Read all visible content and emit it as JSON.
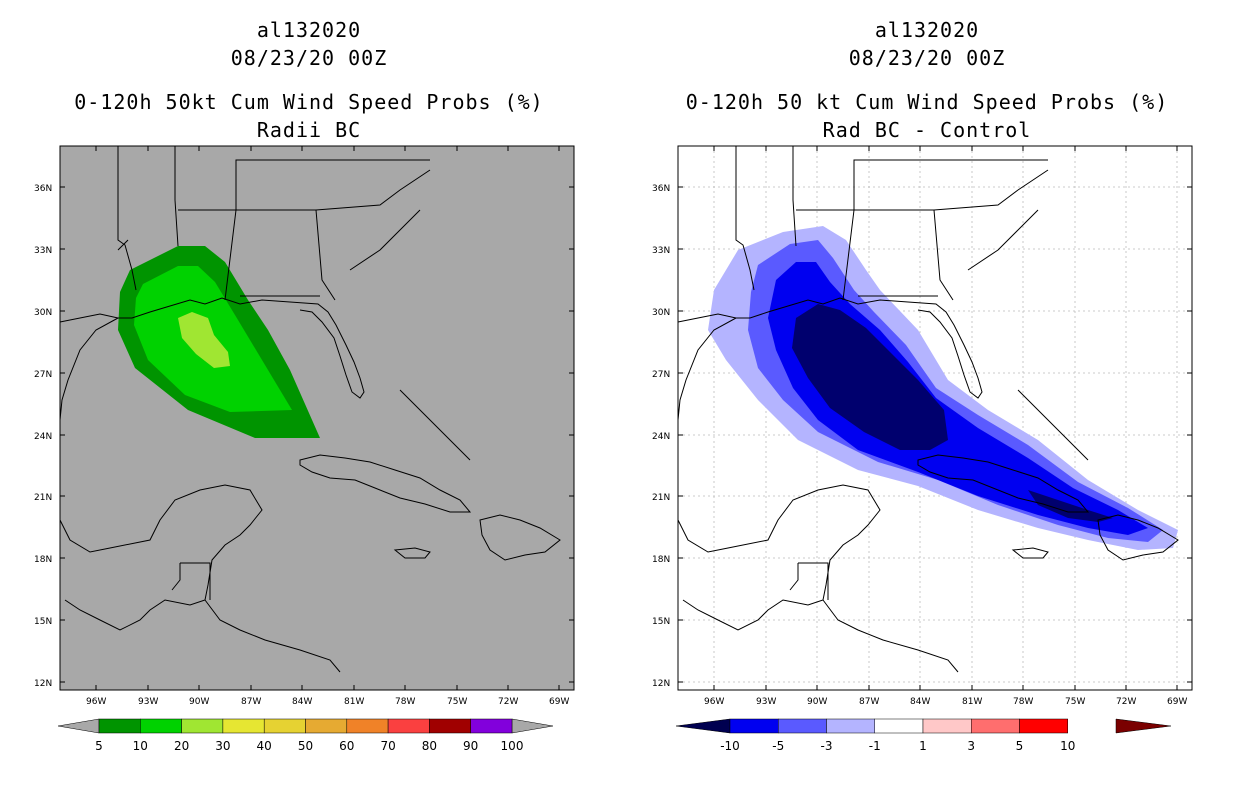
{
  "left": {
    "title1": "al132020",
    "title2": "08/23/20 00Z",
    "title3": "0-120h 50kt Cum Wind Speed Probs (%)",
    "title4": "Radii BC",
    "map_bg": "#a8a8a8",
    "colorbar": {
      "colors": [
        "#009400",
        "#00d200",
        "#a0e632",
        "#e6e632",
        "#e6d232",
        "#e6aa32",
        "#f08228",
        "#fa4040",
        "#a00000",
        "#8200dc"
      ],
      "labels": [
        "5",
        "10",
        "20",
        "30",
        "40",
        "50",
        "60",
        "70",
        "80",
        "90",
        "100"
      ]
    }
  },
  "right": {
    "title1": "al132020",
    "title2": "08/23/20 00Z",
    "title3": "0-120h 50 kt Cum Wind Speed Probs (%)",
    "title4": "Rad BC - Control",
    "map_bg": "#ffffff",
    "colorbar": {
      "colors": [
        "#00006e",
        "#0000f0",
        "#5a5aff",
        "#b4b4ff",
        "#ffffff",
        "#ffc8c8",
        "#ff6e6e",
        "#ff0000"
      ],
      "end_left": "#000050",
      "end_right": "#7a0000",
      "labels": [
        "-10",
        "-5",
        "-3",
        "-1",
        "1",
        "3",
        "5",
        "10"
      ]
    }
  },
  "axes": {
    "lat_labels": [
      "36N",
      "33N",
      "30N",
      "27N",
      "24N",
      "21N",
      "18N",
      "15N",
      "12N"
    ],
    "lon_labels": [
      "96W",
      "93W",
      "90W",
      "87W",
      "84W",
      "81W",
      "78W",
      "75W",
      "72W",
      "69W"
    ]
  }
}
